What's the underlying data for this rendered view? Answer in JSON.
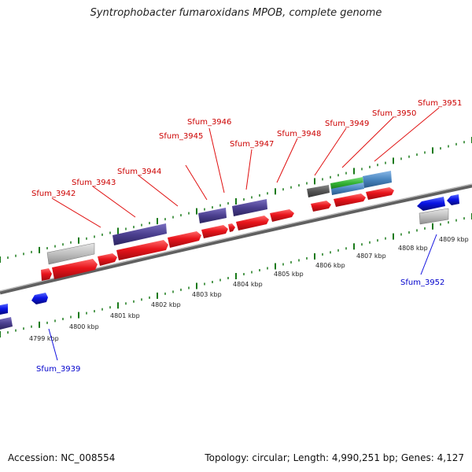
{
  "title": "Syntrophobacter fumaroxidans MPOB, complete genome",
  "footer": {
    "accession": "Accession: NC_008554",
    "summary": "Topology: circular; Length: 4,990,251 bp; Genes: 4,127"
  },
  "colors": {
    "backbone": "#7a7a7a",
    "tick": "#1a7a1a",
    "cds_forward": "#e8141b",
    "cds_reverse": "#0a14e6",
    "rna_gray": "#bfbfbf",
    "purple": "#4b3f8f",
    "green": "#33b233",
    "steelblue": "#4a86c0",
    "dark_gray": "#555555",
    "label_forward": "#cc0000",
    "label_reverse": "#0000cc"
  },
  "scale_labels": [
    "4799 kbp",
    "4800 kbp",
    "4801 kbp",
    "4802 kbp",
    "4803 kbp",
    "4804 kbp",
    "4805 kbp",
    "4806 kbp",
    "4807 kbp",
    "4808 kbp",
    "4809 kbp"
  ],
  "gene_labels": {
    "forward": [
      "Sfum_3942",
      "Sfum_3943",
      "Sfum_3944",
      "Sfum_3945",
      "Sfum_3946",
      "Sfum_3947",
      "Sfum_3948",
      "Sfum_3949",
      "Sfum_3950",
      "Sfum_3951"
    ],
    "reverse": [
      "Sfum_3939",
      "Sfum_3952"
    ]
  }
}
